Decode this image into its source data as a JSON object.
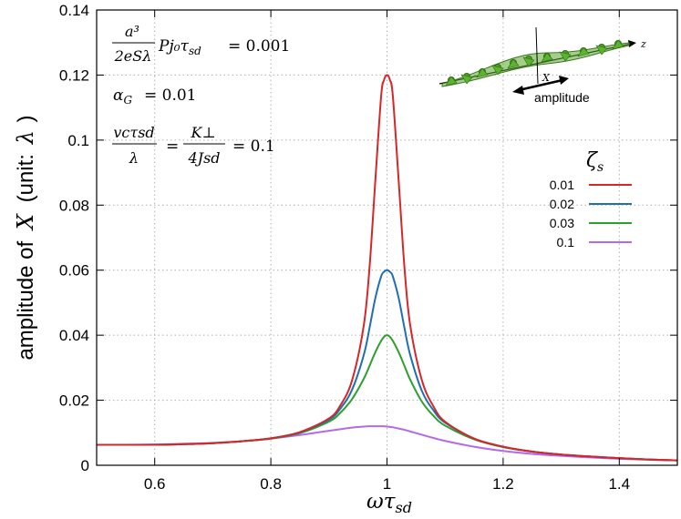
{
  "chart_data": {
    "type": "line",
    "xlabel": "ωτ",
    "xlabel_sub": "sd",
    "ylabel_prefix": "amplitude of",
    "ylabel_var": "X",
    "ylabel_unit_open": "(unit:",
    "ylabel_unit_var": "λ",
    "ylabel_unit_close": ")",
    "xlim": [
      0.5,
      1.5
    ],
    "ylim": [
      0,
      0.14
    ],
    "x_ticks": [
      0.6,
      0.8,
      1,
      1.2,
      1.4
    ],
    "x_tick_labels": [
      "0.6",
      "0.8",
      "1",
      "1.2",
      "1.4"
    ],
    "y_ticks": [
      0,
      0.02,
      0.04,
      0.06,
      0.08,
      0.1,
      0.12,
      0.14
    ],
    "y_tick_labels": [
      "0",
      "0.02",
      "0.04",
      "0.06",
      "0.08",
      "0.1",
      "0.12",
      "0.14"
    ],
    "grid": true,
    "legend_title": "ζ",
    "legend_title_sub": "s",
    "legend_position": "right",
    "x": [
      0.5,
      0.55,
      0.6,
      0.65,
      0.7,
      0.75,
      0.8,
      0.85,
      0.9,
      0.92,
      0.94,
      0.96,
      0.97,
      0.98,
      0.99,
      0.995,
      1.0,
      1.005,
      1.01,
      1.02,
      1.03,
      1.04,
      1.06,
      1.08,
      1.1,
      1.15,
      1.2,
      1.25,
      1.3,
      1.35,
      1.4,
      1.45,
      1.5
    ],
    "series": [
      {
        "name": "0.01",
        "color": "#d62728",
        "values": [
          0.0063,
          0.0063,
          0.0063,
          0.0065,
          0.0068,
          0.0074,
          0.0083,
          0.0102,
          0.0144,
          0.0185,
          0.0262,
          0.043,
          0.061,
          0.0878,
          0.1137,
          0.1185,
          0.12,
          0.1185,
          0.1137,
          0.0878,
          0.061,
          0.043,
          0.0262,
          0.0181,
          0.0134,
          0.0082,
          0.0057,
          0.0042,
          0.0033,
          0.0027,
          0.0022,
          0.0018,
          0.0015
        ]
      },
      {
        "name": "0.02",
        "color": "#1f6fb4",
        "values": [
          0.0063,
          0.0063,
          0.0063,
          0.0065,
          0.0068,
          0.0074,
          0.0083,
          0.0101,
          0.014,
          0.0175,
          0.0233,
          0.0339,
          0.0423,
          0.0515,
          0.0581,
          0.0595,
          0.06,
          0.0595,
          0.0581,
          0.0515,
          0.0423,
          0.0339,
          0.0229,
          0.0169,
          0.0131,
          0.0082,
          0.0057,
          0.0042,
          0.0033,
          0.0027,
          0.0022,
          0.0018,
          0.0015
        ]
      },
      {
        "name": "0.03",
        "color": "#2ca02c",
        "values": [
          0.0063,
          0.0063,
          0.0063,
          0.0065,
          0.0068,
          0.0074,
          0.0082,
          0.0099,
          0.0134,
          0.0162,
          0.0204,
          0.0266,
          0.0306,
          0.0348,
          0.0383,
          0.0395,
          0.04,
          0.0395,
          0.0383,
          0.0348,
          0.0306,
          0.0263,
          0.0196,
          0.0152,
          0.0122,
          0.008,
          0.0056,
          0.0042,
          0.0033,
          0.0027,
          0.0022,
          0.0018,
          0.0015
        ]
      },
      {
        "name": "0.1",
        "color": "#b069f0",
        "values": [
          0.0063,
          0.0063,
          0.0064,
          0.0066,
          0.0069,
          0.0074,
          0.0082,
          0.0093,
          0.0106,
          0.0111,
          0.0116,
          0.0119,
          0.012,
          0.012,
          0.012,
          0.012,
          0.0119,
          0.0118,
          0.0117,
          0.0113,
          0.0109,
          0.0104,
          0.0094,
          0.0084,
          0.0075,
          0.0057,
          0.0044,
          0.0035,
          0.0029,
          0.0024,
          0.002,
          0.0017,
          0.0015
        ]
      }
    ],
    "annotations": {
      "parameters": [
        {
          "lhs_num": "a³",
          "lhs_den": "2eSλ",
          "lhs_tail": "Pj₀τ",
          "lhs_tail_sub": "sd",
          "rhs": "= 0.001"
        },
        {
          "lhs": "α",
          "lhs_sub": "G",
          "rhs": "= 0.01"
        },
        {
          "num1": "vcτsd",
          "den1": "λ",
          "num2": "K⊥",
          "den2": "4Jsd",
          "rhs": "= 0.1"
        }
      ],
      "inset_axis_label": "z",
      "inset_var_label": "X",
      "inset_caption": "amplitude"
    }
  }
}
